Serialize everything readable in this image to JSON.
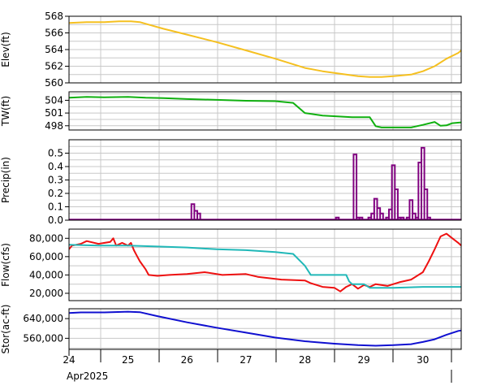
{
  "chart_data": [
    {
      "type": "line",
      "ylabel": "Elev(ft)",
      "yticks": [
        560,
        562,
        564,
        566,
        568
      ],
      "ylim": [
        560,
        568
      ],
      "grid": true,
      "series": [
        {
          "color": "#f5c020",
          "points": [
            [
              24.0,
              567.2
            ],
            [
              24.3,
              567.3
            ],
            [
              24.6,
              567.3
            ],
            [
              24.85,
              567.4
            ],
            [
              25.05,
              567.4
            ],
            [
              25.2,
              567.3
            ],
            [
              25.35,
              567.0
            ],
            [
              25.6,
              566.5
            ],
            [
              26.0,
              565.8
            ],
            [
              26.5,
              564.9
            ],
            [
              27.0,
              563.9
            ],
            [
              27.5,
              562.9
            ],
            [
              28.0,
              561.8
            ],
            [
              28.3,
              561.4
            ],
            [
              28.6,
              561.1
            ],
            [
              28.9,
              560.8
            ],
            [
              29.1,
              560.7
            ],
            [
              29.3,
              560.7
            ],
            [
              29.5,
              560.8
            ],
            [
              29.8,
              561.0
            ],
            [
              30.0,
              561.4
            ],
            [
              30.2,
              562.0
            ],
            [
              30.4,
              562.9
            ],
            [
              30.6,
              563.6
            ],
            [
              30.65,
              563.9
            ]
          ]
        }
      ]
    },
    {
      "type": "line",
      "ylabel": "TW(ft)",
      "yticks": [
        498,
        501,
        504
      ],
      "ylim": [
        497,
        506
      ],
      "grid": true,
      "series": [
        {
          "color": "#10b010",
          "points": [
            [
              24.0,
              504.6
            ],
            [
              24.3,
              504.8
            ],
            [
              24.6,
              504.7
            ],
            [
              25.0,
              504.8
            ],
            [
              25.3,
              504.6
            ],
            [
              25.6,
              504.5
            ],
            [
              26.0,
              504.3
            ],
            [
              26.5,
              504.1
            ],
            [
              27.0,
              503.9
            ],
            [
              27.5,
              503.8
            ],
            [
              27.8,
              503.4
            ],
            [
              28.0,
              501.0
            ],
            [
              28.3,
              500.4
            ],
            [
              28.8,
              500.0
            ],
            [
              29.1,
              500.0
            ],
            [
              29.2,
              497.9
            ],
            [
              29.3,
              497.6
            ],
            [
              29.8,
              497.6
            ],
            [
              30.0,
              498.2
            ],
            [
              30.2,
              498.9
            ],
            [
              30.3,
              498.0
            ],
            [
              30.4,
              498.1
            ],
            [
              30.5,
              498.6
            ],
            [
              30.65,
              498.8
            ]
          ]
        }
      ]
    },
    {
      "type": "bar",
      "ylabel": "Precip(in)",
      "yticks": [
        0.0,
        0.1,
        0.2,
        0.3,
        0.4,
        0.5
      ],
      "ylim": [
        0,
        0.6
      ],
      "grid": true,
      "series": [
        {
          "color": "#800080",
          "bars": [
            [
              26.1,
              0.12
            ],
            [
              26.15,
              0.07
            ],
            [
              26.2,
              0.05
            ],
            [
              28.55,
              0.02
            ],
            [
              28.85,
              0.49
            ],
            [
              28.9,
              0.02
            ],
            [
              28.95,
              0.02
            ],
            [
              29.1,
              0.02
            ],
            [
              29.15,
              0.05
            ],
            [
              29.2,
              0.16
            ],
            [
              29.25,
              0.09
            ],
            [
              29.3,
              0.05
            ],
            [
              29.4,
              0.02
            ],
            [
              29.45,
              0.08
            ],
            [
              29.5,
              0.41
            ],
            [
              29.55,
              0.23
            ],
            [
              29.6,
              0.02
            ],
            [
              29.65,
              0.02
            ],
            [
              29.75,
              0.02
            ],
            [
              29.8,
              0.15
            ],
            [
              29.85,
              0.05
            ],
            [
              29.9,
              0.02
            ],
            [
              29.95,
              0.43
            ],
            [
              30.0,
              0.54
            ],
            [
              30.05,
              0.23
            ],
            [
              30.1,
              0.02
            ]
          ]
        }
      ]
    },
    {
      "type": "line",
      "ylabel": "Flow(cfs)",
      "yticks": [
        20000,
        40000,
        60000,
        80000
      ],
      "ylim": [
        12000,
        90000
      ],
      "grid": true,
      "series": [
        {
          "color": "#ee1111",
          "points": [
            [
              24.0,
              68000
            ],
            [
              24.05,
              72000
            ],
            [
              24.2,
              74000
            ],
            [
              24.3,
              77000
            ],
            [
              24.5,
              74000
            ],
            [
              24.7,
              76000
            ],
            [
              24.75,
              80000
            ],
            [
              24.8,
              72000
            ],
            [
              24.9,
              75000
            ],
            [
              25.0,
              72000
            ],
            [
              25.05,
              75000
            ],
            [
              25.1,
              67000
            ],
            [
              25.15,
              61000
            ],
            [
              25.2,
              55000
            ],
            [
              25.3,
              46000
            ],
            [
              25.35,
              40000
            ],
            [
              25.5,
              39000
            ],
            [
              25.7,
              40000
            ],
            [
              26.0,
              41000
            ],
            [
              26.3,
              43000
            ],
            [
              26.6,
              40000
            ],
            [
              27.0,
              41000
            ],
            [
              27.2,
              38000
            ],
            [
              27.6,
              35000
            ],
            [
              28.0,
              34000
            ],
            [
              28.1,
              31000
            ],
            [
              28.3,
              27000
            ],
            [
              28.5,
              26000
            ],
            [
              28.6,
              22000
            ],
            [
              28.7,
              27000
            ],
            [
              28.8,
              30000
            ],
            [
              28.9,
              25000
            ],
            [
              29.0,
              29000
            ],
            [
              29.1,
              27000
            ],
            [
              29.2,
              30000
            ],
            [
              29.4,
              28000
            ],
            [
              29.6,
              32000
            ],
            [
              29.8,
              35000
            ],
            [
              30.0,
              43000
            ],
            [
              30.1,
              55000
            ],
            [
              30.2,
              68000
            ],
            [
              30.3,
              82000
            ],
            [
              30.4,
              85000
            ],
            [
              30.5,
              80000
            ],
            [
              30.6,
              75000
            ],
            [
              30.65,
              72000
            ]
          ]
        },
        {
          "color": "#20b8b8",
          "points": [
            [
              24.0,
              73000
            ],
            [
              24.5,
              72000
            ],
            [
              25.0,
              72000
            ],
            [
              25.5,
              71000
            ],
            [
              26.0,
              70000
            ],
            [
              26.5,
              68000
            ],
            [
              27.0,
              67000
            ],
            [
              27.5,
              65000
            ],
            [
              27.8,
              63000
            ],
            [
              28.0,
              50000
            ],
            [
              28.1,
              40000
            ],
            [
              28.7,
              40000
            ],
            [
              28.75,
              33000
            ],
            [
              28.8,
              30000
            ],
            [
              29.0,
              30000
            ],
            [
              29.1,
              26000
            ],
            [
              29.3,
              26000
            ],
            [
              29.5,
              26000
            ],
            [
              30.0,
              27000
            ],
            [
              30.65,
              27000
            ]
          ]
        }
      ]
    },
    {
      "type": "line",
      "ylabel": "Stor(ac-ft)",
      "yticks": [
        560000,
        640000
      ],
      "ylim": [
        515000,
        680000
      ],
      "grid": true,
      "series": [
        {
          "color": "#1010d0",
          "points": [
            [
              24.0,
              663000
            ],
            [
              24.2,
              665000
            ],
            [
              24.6,
              665000
            ],
            [
              25.0,
              668000
            ],
            [
              25.2,
              666000
            ],
            [
              25.5,
              650000
            ],
            [
              26.0,
              625000
            ],
            [
              26.5,
              603000
            ],
            [
              27.0,
              583000
            ],
            [
              27.5,
              563000
            ],
            [
              28.0,
              548000
            ],
            [
              28.5,
              538000
            ],
            [
              28.9,
              532000
            ],
            [
              29.2,
              530000
            ],
            [
              29.5,
              532000
            ],
            [
              29.8,
              536000
            ],
            [
              30.0,
              545000
            ],
            [
              30.2,
              556000
            ],
            [
              30.4,
              574000
            ],
            [
              30.6,
              590000
            ],
            [
              30.65,
              592000
            ]
          ]
        }
      ]
    }
  ],
  "x_axis": {
    "range": [
      24.0,
      30.65
    ],
    "labels": [
      "24",
      "25",
      "26",
      "27",
      "28",
      "29",
      "30"
    ],
    "month_label": "Apr2025"
  }
}
